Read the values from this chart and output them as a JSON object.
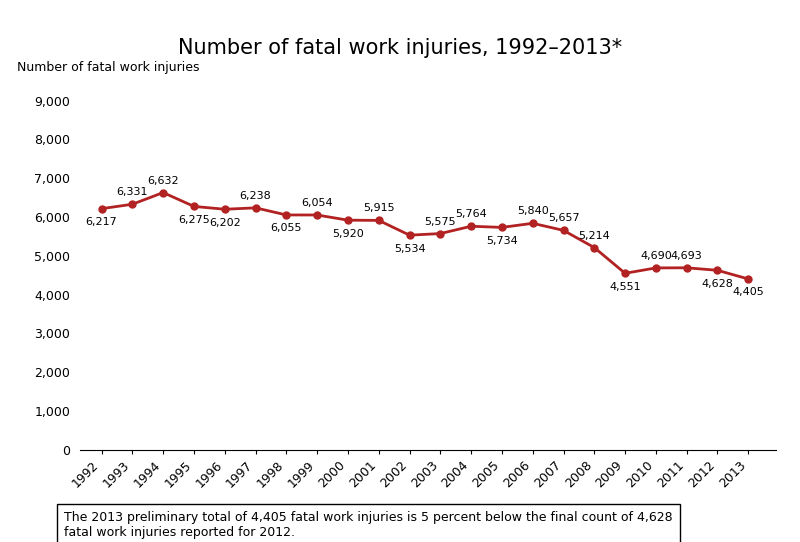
{
  "title": "Number of fatal work injuries, 1992–2013*",
  "ylabel": "Number of fatal work injuries",
  "years": [
    1992,
    1993,
    1994,
    1995,
    1996,
    1997,
    1998,
    1999,
    2000,
    2001,
    2002,
    2003,
    2004,
    2005,
    2006,
    2007,
    2008,
    2009,
    2010,
    2011,
    2012,
    2013
  ],
  "values": [
    6217,
    6331,
    6632,
    6275,
    6202,
    6238,
    6055,
    6054,
    5920,
    5915,
    5534,
    5575,
    5764,
    5734,
    5840,
    5657,
    5214,
    4551,
    4690,
    4693,
    4628,
    4405
  ],
  "annot_offsets": [
    [
      0,
      -220,
      "center",
      "top"
    ],
    [
      0,
      180,
      "center",
      "bottom"
    ],
    [
      0,
      180,
      "center",
      "bottom"
    ],
    [
      0,
      -220,
      "center",
      "top"
    ],
    [
      0,
      -220,
      "center",
      "top"
    ],
    [
      0,
      180,
      "center",
      "bottom"
    ],
    [
      0,
      -220,
      "center",
      "top"
    ],
    [
      0,
      180,
      "center",
      "bottom"
    ],
    [
      0,
      -220,
      "center",
      "top"
    ],
    [
      0,
      180,
      "center",
      "bottom"
    ],
    [
      0,
      -220,
      "center",
      "top"
    ],
    [
      0,
      180,
      "center",
      "bottom"
    ],
    [
      0,
      180,
      "center",
      "bottom"
    ],
    [
      0,
      -220,
      "center",
      "top"
    ],
    [
      0,
      180,
      "center",
      "bottom"
    ],
    [
      0,
      180,
      "center",
      "bottom"
    ],
    [
      0,
      180,
      "center",
      "bottom"
    ],
    [
      0,
      -220,
      "center",
      "top"
    ],
    [
      0,
      180,
      "center",
      "bottom"
    ],
    [
      0,
      180,
      "center",
      "bottom"
    ],
    [
      0,
      -220,
      "center",
      "top"
    ],
    [
      0,
      -220,
      "center",
      "top"
    ]
  ],
  "line_color": "#b22222",
  "marker_color": "#b22222",
  "bg_color": "#ffffff",
  "yticks": [
    0,
    1000,
    2000,
    3000,
    4000,
    5000,
    6000,
    7000,
    8000,
    9000
  ],
  "ylim": [
    0,
    9500
  ],
  "note": "The 2013 preliminary total of 4,405 fatal work injuries is 5 percent below the final count of 4,628\nfatal work injuries reported for 2012.",
  "title_fontsize": 15,
  "label_fontsize": 9,
  "annot_fontsize": 8,
  "note_fontsize": 9
}
